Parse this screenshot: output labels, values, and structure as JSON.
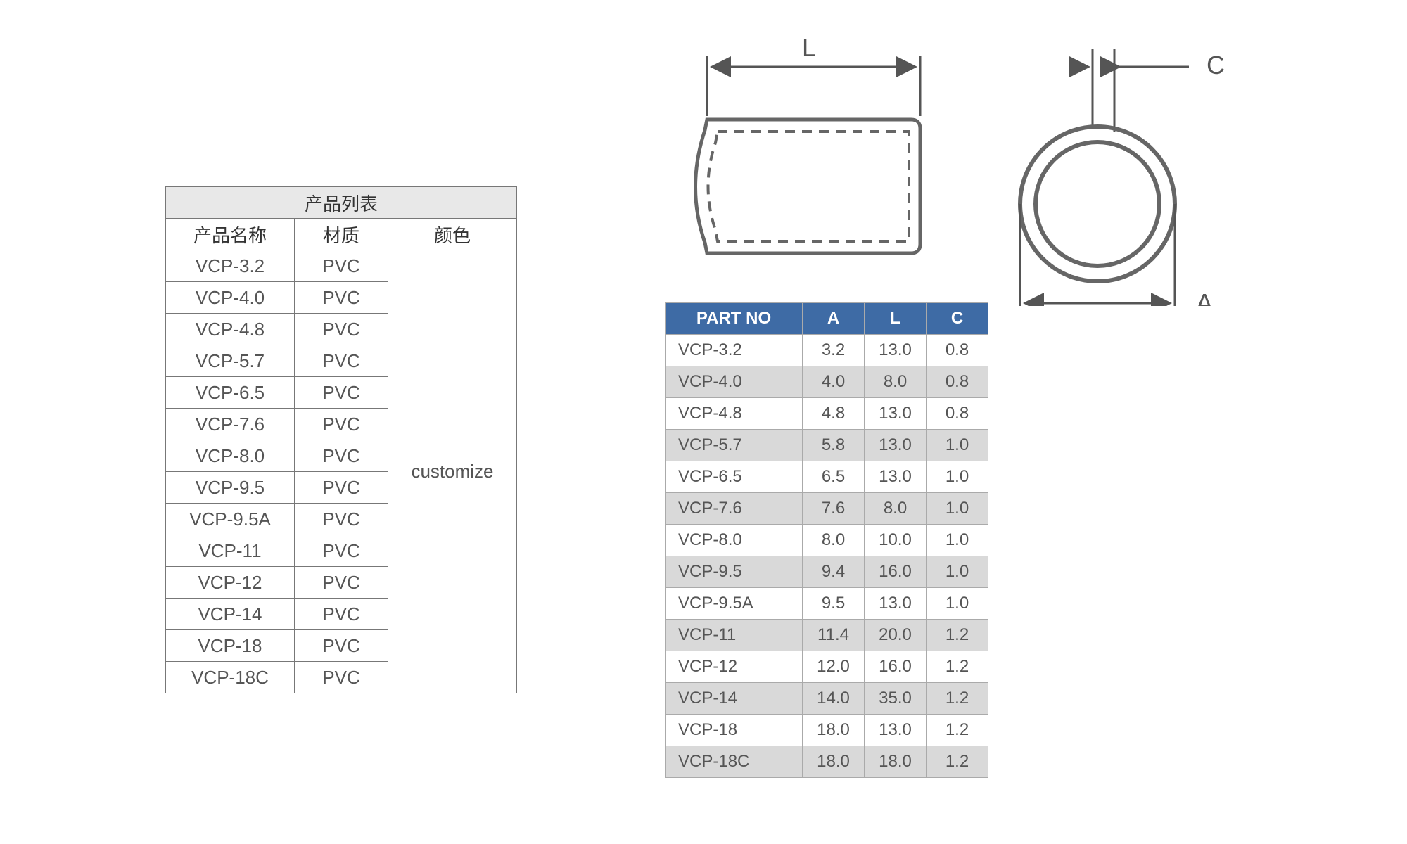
{
  "left_table": {
    "title": "产品列表",
    "columns": [
      "产品名称",
      "材质",
      "颜色"
    ],
    "rows": [
      {
        "name": "VCP-3.2",
        "material": "PVC"
      },
      {
        "name": "VCP-4.0",
        "material": "PVC"
      },
      {
        "name": "VCP-4.8",
        "material": "PVC"
      },
      {
        "name": "VCP-5.7",
        "material": "PVC"
      },
      {
        "name": "VCP-6.5",
        "material": "PVC"
      },
      {
        "name": "VCP-7.6",
        "material": "PVC"
      },
      {
        "name": "VCP-8.0",
        "material": "PVC"
      },
      {
        "name": "VCP-9.5",
        "material": "PVC"
      },
      {
        "name": "VCP-9.5A",
        "material": "PVC"
      },
      {
        "name": "VCP-11",
        "material": "PVC"
      },
      {
        "name": "VCP-12",
        "material": "PVC"
      },
      {
        "name": "VCP-14",
        "material": "PVC"
      },
      {
        "name": "VCP-18",
        "material": "PVC"
      },
      {
        "name": "VCP-18C",
        "material": "PVC"
      }
    ],
    "color_merged_value": "customize",
    "title_bg": "#e8e8e8",
    "border_color": "#777777",
    "text_color": "#555555",
    "font_size_pt": 20
  },
  "dim_table": {
    "columns": [
      "PART NO",
      "A",
      "L",
      "C"
    ],
    "rows": [
      {
        "part": "VCP-3.2",
        "A": "3.2",
        "L": "13.0",
        "C": "0.8"
      },
      {
        "part": "VCP-4.0",
        "A": "4.0",
        "L": "8.0",
        "C": "0.8"
      },
      {
        "part": "VCP-4.8",
        "A": "4.8",
        "L": "13.0",
        "C": "0.8"
      },
      {
        "part": "VCP-5.7",
        "A": "5.8",
        "L": "13.0",
        "C": "1.0"
      },
      {
        "part": "VCP-6.5",
        "A": "6.5",
        "L": "13.0",
        "C": "1.0"
      },
      {
        "part": "VCP-7.6",
        "A": "7.6",
        "L": "8.0",
        "C": "1.0"
      },
      {
        "part": "VCP-8.0",
        "A": "8.0",
        "L": "10.0",
        "C": "1.0"
      },
      {
        "part": "VCP-9.5",
        "A": "9.4",
        "L": "16.0",
        "C": "1.0"
      },
      {
        "part": "VCP-9.5A",
        "A": "9.5",
        "L": "13.0",
        "C": "1.0"
      },
      {
        "part": "VCP-11",
        "A": "11.4",
        "L": "20.0",
        "C": "1.2"
      },
      {
        "part": "VCP-12",
        "A": "12.0",
        "L": "16.0",
        "C": "1.2"
      },
      {
        "part": "VCP-14",
        "A": "14.0",
        "L": "35.0",
        "C": "1.2"
      },
      {
        "part": "VCP-18",
        "A": "18.0",
        "L": "13.0",
        "C": "1.2"
      },
      {
        "part": "VCP-18C",
        "A": "18.0",
        "L": "18.0",
        "C": "1.2"
      }
    ],
    "header_bg": "#3e6ba5",
    "header_fg": "#ffffff",
    "row_alt_bg": "#d9d9d9",
    "row_bg": "#ffffff",
    "border_color": "#aaaaaa",
    "font_size_pt": 18
  },
  "diagram": {
    "labels": {
      "L": "L",
      "C": "C",
      "A": "A"
    },
    "stroke_outline": "#666666",
    "stroke_dim": "#555555",
    "stroke_dash": "#666666",
    "outline_width": 5,
    "dim_line_width": 3,
    "dash_pattern": "14 10",
    "label_fontsize": 36
  }
}
